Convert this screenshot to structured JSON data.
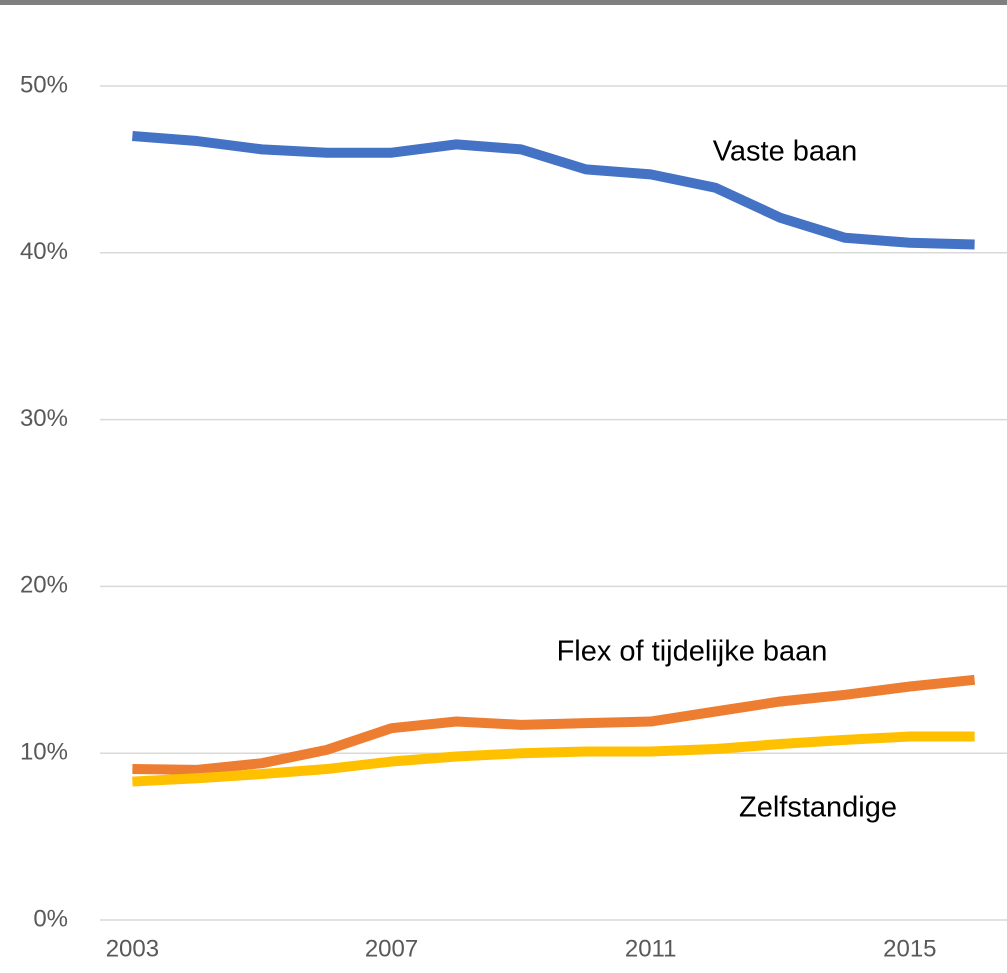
{
  "chart_data": {
    "type": "line",
    "x": [
      2003,
      2004,
      2005,
      2006,
      2007,
      2008,
      2009,
      2010,
      2011,
      2012,
      2013,
      2014,
      2015,
      2016
    ],
    "series": [
      {
        "name": "Vaste baan",
        "color": "#4472c4",
        "values": [
          47.0,
          46.7,
          46.2,
          46.0,
          46.0,
          46.5,
          46.2,
          45.0,
          44.7,
          43.9,
          42.1,
          40.9,
          40.6,
          40.5
        ]
      },
      {
        "name": "Flex of tijdelijke baan",
        "color": "#ed7d31",
        "values": [
          9.05,
          9.0,
          9.4,
          10.2,
          11.5,
          11.9,
          11.7,
          11.8,
          11.9,
          12.5,
          13.1,
          13.5,
          14.0,
          14.4
        ]
      },
      {
        "name": "Zelfstandige",
        "color": "#ffc000",
        "values": [
          8.3,
          8.5,
          8.75,
          9.05,
          9.5,
          9.8,
          10.0,
          10.1,
          10.1,
          10.25,
          10.55,
          10.8,
          11.0,
          11.0
        ]
      }
    ],
    "xlim": [
      2002.5,
      2016.5
    ],
    "xticks": [
      2003,
      2007,
      2011,
      2015
    ],
    "ylim": [
      0,
      50
    ],
    "yticks": [
      {
        "value": 0,
        "label": "0%"
      },
      {
        "value": 10,
        "label": "10%"
      },
      {
        "value": 20,
        "label": "20%"
      },
      {
        "value": 30,
        "label": "30%"
      },
      {
        "value": 40,
        "label": "40%"
      },
      {
        "value": 50,
        "label": "50%"
      }
    ],
    "grid": true
  }
}
